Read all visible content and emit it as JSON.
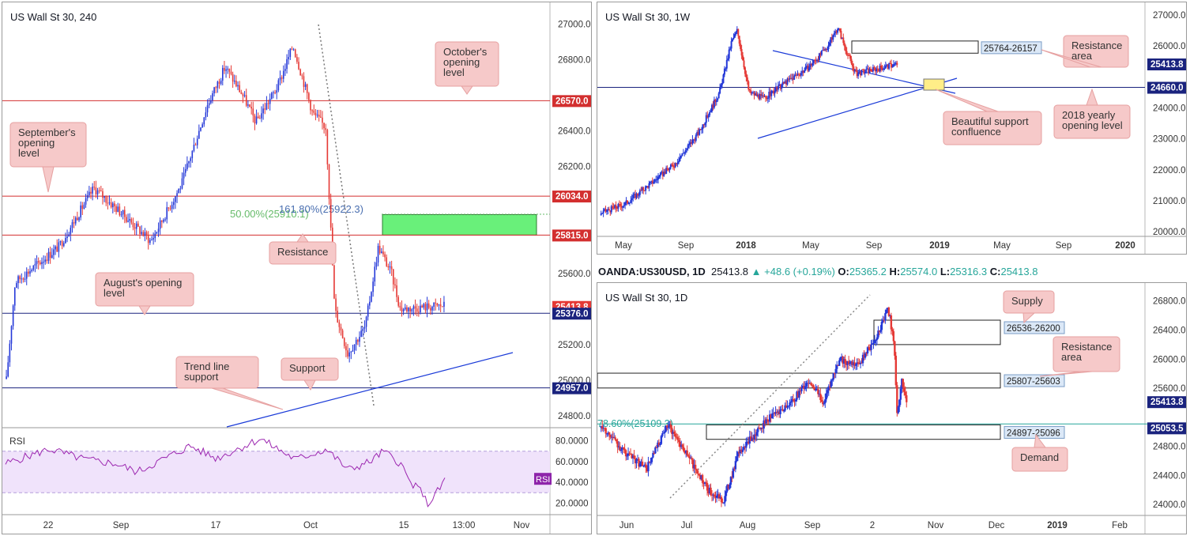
{
  "chart_data": [
    {
      "type": "candlestick",
      "title": "US Wall St 30, 240",
      "timeframe": "240",
      "price_axis": [
        27000,
        26800,
        26570,
        26400,
        26200,
        26034,
        25815,
        25600,
        25413.8,
        25376,
        25200,
        25000,
        24957,
        24800
      ],
      "ylim": [
        24760,
        27060
      ],
      "x_ticks": [
        "22",
        "Sep",
        "17",
        "Oct",
        "15",
        "13:00",
        "Nov"
      ],
      "levels": [
        {
          "name": "October's opening level",
          "price": 26570.0,
          "color": "#d32f2f"
        },
        {
          "name": "September's opening level",
          "price": 26034.0,
          "color": "#d32f2f"
        },
        {
          "name": "Resistance",
          "price": 25815.0,
          "color": "#d32f2f"
        },
        {
          "name": "August's opening level",
          "price": 25376.0,
          "color": "#1a237e"
        },
        {
          "name": "Support",
          "price": 24957.0,
          "color": "#1a237e"
        }
      ],
      "price_label": 25413.8,
      "fib_labels": [
        "50.00%(25910.1)",
        "161.80%(25922.3)"
      ],
      "zone": {
        "top": 25930,
        "bottom": 25815,
        "color": "#69f07a"
      },
      "annotations": [
        "October's opening level",
        "September's opening level",
        "Resistance",
        "August's opening level",
        "Trend line support",
        "Support"
      ],
      "rsi": {
        "label": "RSI",
        "ticks": [
          "80.0000",
          "60.0000",
          "40.0000",
          "20.0000"
        ],
        "upper": 70,
        "lower": 30,
        "last": 43
      }
    },
    {
      "type": "candlestick",
      "title": "US Wall St 30, 1W",
      "timeframe": "1W",
      "price_axis": [
        27000,
        26000,
        25413.8,
        24660,
        24000,
        23000,
        22000,
        21000,
        20000
      ],
      "ylim": [
        19850,
        27200
      ],
      "x_ticks": [
        "May",
        "Sep",
        "2018",
        "May",
        "Sep",
        "2019",
        "May",
        "Sep",
        "2020"
      ],
      "levels": [
        {
          "name": "2018 yearly opening level",
          "price": 24660.0,
          "color": "#1a237e"
        }
      ],
      "price_label": 25413.8,
      "zones": [
        {
          "label": "25764-26157",
          "top": 26157,
          "bottom": 25764
        }
      ],
      "annotations": [
        "Resistance area",
        "2018 yearly opening level",
        "Beautiful support confluence"
      ]
    },
    {
      "type": "candlestick",
      "title": "US Wall St 30, 1D",
      "timeframe": "1D",
      "price_axis": [
        26800,
        26400,
        26000,
        25600,
        25413.8,
        25053.5,
        24800,
        24400,
        24000
      ],
      "ylim": [
        23850,
        26960
      ],
      "x_ticks": [
        "Jun",
        "Jul",
        "Aug",
        "Sep",
        "2",
        "Nov",
        "Dec",
        "2019",
        "Feb"
      ],
      "price_label": 25413.8,
      "fib_label": "78.60%(25109.3)",
      "fib_level": 25109.3,
      "extra_level_label": 25053.5,
      "zones": [
        {
          "label": "26536-26200",
          "top": 26536,
          "bottom": 26200
        },
        {
          "label": "25807-25603",
          "top": 25807,
          "bottom": 25603
        },
        {
          "label": "24897-25096",
          "top": 25096,
          "bottom": 24897
        }
      ],
      "annotations": [
        "Supply",
        "Resistance area",
        "Demand"
      ]
    }
  ],
  "ohlc_bar": {
    "symbol": "OANDA:US30USD, 1D",
    "last": "25413.8",
    "change": "+48.6 (+0.19%)",
    "open_label": "O:",
    "open": "25365.2",
    "high_label": "H:",
    "high": "25574.0",
    "low_label": "L:",
    "low": "25316.3",
    "close_label": "C:",
    "close": "25413.8"
  },
  "colors": {
    "bull": "#2438d8",
    "bear": "#e53935",
    "callout_fill": "#f6c9c9",
    "callout_border": "#e6a0a0",
    "rsi_line": "#9c27b0",
    "rsi_fill": "#f0e3fb"
  }
}
